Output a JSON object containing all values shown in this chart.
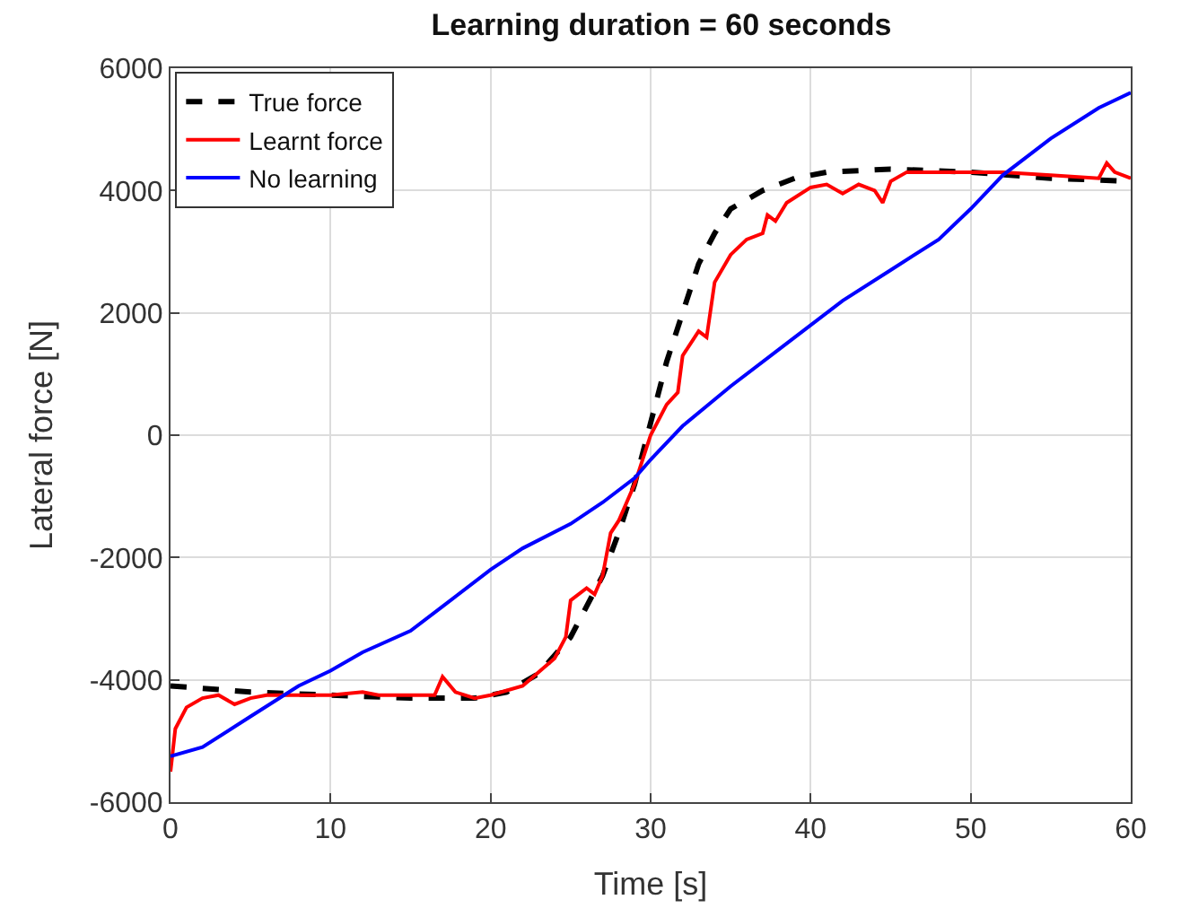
{
  "chart_data": {
    "type": "line",
    "title": "Learning duration = 60 seconds",
    "xlabel": "Time [s]",
    "ylabel": "Lateral force [N]",
    "xlim": [
      0,
      60
    ],
    "xticks": [
      0,
      10,
      20,
      30,
      40,
      50,
      60
    ],
    "ylim": [
      -6000,
      6000
    ],
    "yticks": [
      -6000,
      -4000,
      -2000,
      0,
      2000,
      4000,
      6000
    ],
    "grid": true,
    "legend": "top left",
    "marker": "none",
    "series": [
      {
        "name": "True force",
        "color": "#000000",
        "line_style": "dashed",
        "x": [
          0,
          5,
          10,
          15,
          19,
          21,
          23,
          25,
          27,
          28,
          29,
          30,
          31,
          32,
          33,
          34,
          35,
          37,
          39,
          41,
          45,
          50,
          55,
          60
        ],
        "values": [
          -4100,
          -4200,
          -4250,
          -4300,
          -4300,
          -4200,
          -3900,
          -3300,
          -2300,
          -1600,
          -800,
          200,
          1200,
          2000,
          2800,
          3300,
          3700,
          4000,
          4200,
          4300,
          4350,
          4300,
          4200,
          4150
        ]
      },
      {
        "name": "Learnt force",
        "color": "#ff0000",
        "line_style": "solid",
        "x": [
          0,
          0.3,
          1,
          2,
          3,
          4,
          5,
          6,
          8,
          10,
          12,
          13,
          15,
          16.5,
          17,
          17.8,
          19,
          20,
          22,
          24,
          24.7,
          25,
          26,
          26.5,
          27,
          27.5,
          28,
          29,
          30,
          31,
          31.7,
          32,
          33,
          33.5,
          34,
          35,
          36,
          37,
          37.3,
          37.8,
          38.5,
          40,
          41,
          42,
          43,
          44,
          44.5,
          45,
          46,
          50,
          52,
          55,
          58,
          58.5,
          59,
          60
        ],
        "values": [
          -5500,
          -4800,
          -4450,
          -4300,
          -4250,
          -4400,
          -4300,
          -4250,
          -4250,
          -4250,
          -4200,
          -4250,
          -4250,
          -4250,
          -3950,
          -4200,
          -4300,
          -4250,
          -4100,
          -3650,
          -3300,
          -2700,
          -2500,
          -2600,
          -2300,
          -1600,
          -1400,
          -800,
          0,
          500,
          700,
          1300,
          1700,
          1600,
          2500,
          2950,
          3200,
          3300,
          3600,
          3500,
          3800,
          4050,
          4100,
          3950,
          4100,
          4000,
          3800,
          4150,
          4300,
          4300,
          4300,
          4250,
          4200,
          4450,
          4300,
          4200
        ]
      },
      {
        "name": "No learning",
        "color": "#0000ff",
        "line_style": "solid",
        "x": [
          0,
          2,
          5,
          8,
          10,
          12,
          15,
          17,
          20,
          22,
          25,
          27,
          29,
          30,
          32,
          35,
          38,
          40,
          42,
          45,
          48,
          50,
          52,
          55,
          58,
          60
        ],
        "values": [
          -5250,
          -5100,
          -4600,
          -4100,
          -3850,
          -3550,
          -3200,
          -2800,
          -2200,
          -1850,
          -1450,
          -1100,
          -700,
          -400,
          150,
          800,
          1400,
          1800,
          2200,
          2700,
          3200,
          3700,
          4250,
          4850,
          5350,
          5600
        ]
      }
    ]
  }
}
